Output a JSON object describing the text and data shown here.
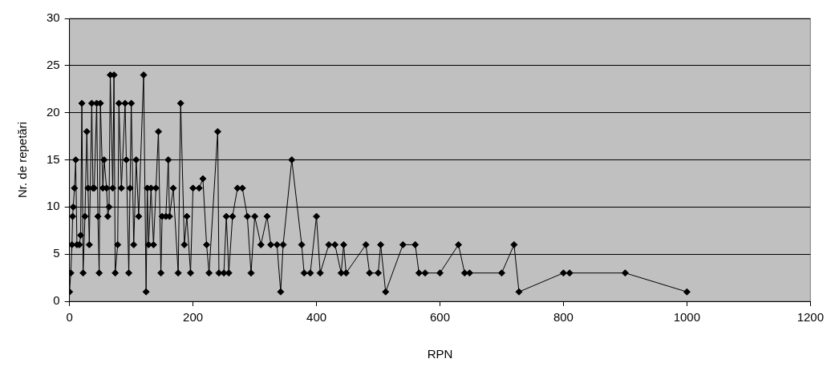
{
  "chart_data": {
    "type": "line",
    "xlabel": "RPN",
    "ylabel": "Nr. de repetări",
    "xlim": [
      0,
      1200
    ],
    "xticks": [
      0,
      200,
      400,
      600,
      800,
      1000,
      1200
    ],
    "ylim": [
      0,
      30
    ],
    "yticks": [
      0,
      5,
      10,
      15,
      20,
      25,
      30
    ],
    "grid": "y",
    "marker": "diamond",
    "line_style": "solid",
    "legend": false,
    "x": [
      0,
      2,
      4,
      5,
      6,
      8,
      10,
      12,
      16,
      18,
      20,
      22,
      25,
      28,
      30,
      32,
      36,
      38,
      40,
      44,
      46,
      48,
      50,
      54,
      56,
      60,
      62,
      64,
      66,
      70,
      72,
      74,
      78,
      80,
      84,
      90,
      92,
      96,
      98,
      100,
      104,
      108,
      112,
      120,
      124,
      126,
      128,
      132,
      136,
      140,
      144,
      148,
      150,
      156,
      160,
      162,
      168,
      176,
      180,
      186,
      190,
      196,
      200,
      210,
      216,
      222,
      226,
      240,
      242,
      250,
      254,
      258,
      264,
      272,
      280,
      288,
      294,
      300,
      310,
      320,
      326,
      336,
      342,
      346,
      360,
      376,
      380,
      390,
      400,
      406,
      420,
      430,
      440,
      444,
      448,
      480,
      486,
      500,
      504,
      512,
      540,
      560,
      566,
      576,
      600,
      630,
      640,
      648,
      700,
      720,
      728,
      800,
      810,
      900,
      1000
    ],
    "series": [
      {
        "color": "#000000",
        "values": [
          1,
          3,
          6,
          9,
          10,
          12,
          15,
          6,
          6,
          7,
          21,
          3,
          9,
          18,
          12,
          6,
          21,
          12,
          12,
          21,
          9,
          3,
          21,
          12,
          15,
          12,
          9,
          10,
          24,
          12,
          24,
          3,
          6,
          21,
          12,
          21,
          15,
          3,
          12,
          21,
          6,
          15,
          9,
          24,
          1,
          12,
          6,
          12,
          6,
          12,
          18,
          3,
          9,
          9,
          15,
          9,
          12,
          3,
          21,
          6,
          9,
          3,
          12,
          12,
          13,
          6,
          3,
          18,
          3,
          3,
          9,
          3,
          9,
          12,
          12,
          9,
          3,
          9,
          6,
          9,
          6,
          6,
          1,
          6,
          15,
          6,
          3,
          3,
          9,
          3,
          6,
          6,
          3,
          6,
          3,
          6,
          3,
          3,
          6,
          1,
          6,
          6,
          3,
          3,
          3,
          6,
          3,
          3,
          3,
          6,
          1,
          3,
          3,
          3,
          1
        ]
      }
    ]
  }
}
